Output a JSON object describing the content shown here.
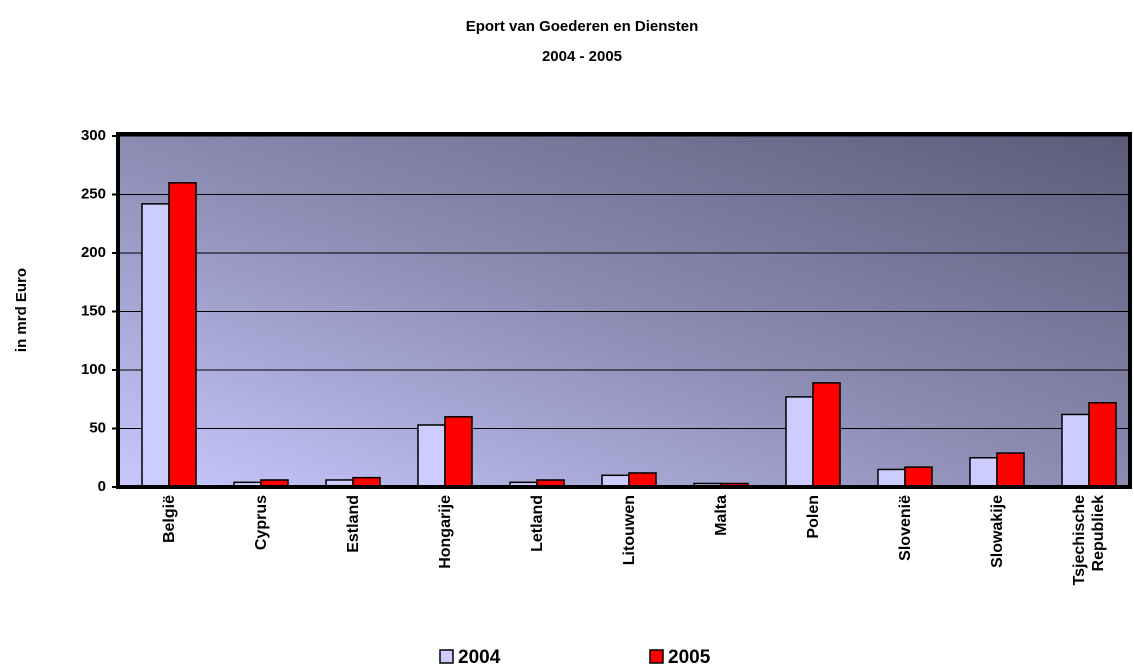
{
  "chart_data": {
    "type": "bar",
    "title": "Eport van Goederen en Diensten",
    "subtitle": "2004 - 2005",
    "y_label": "in mrd Euro",
    "categories": [
      "België",
      "Cyprus",
      "Estland",
      "Hongarije",
      "Letland",
      "Litouwen",
      "Malta",
      "Polen",
      "Slovenië",
      "Slowakije",
      "Tsjechische Republiek"
    ],
    "series": [
      {
        "name": "2004",
        "color": "#ccccff",
        "values": [
          242,
          4,
          6,
          53,
          4,
          10,
          3,
          77,
          15,
          25,
          62
        ]
      },
      {
        "name": "2005",
        "color": "#ff0000",
        "values": [
          260,
          6,
          8,
          60,
          6,
          12,
          3,
          89,
          17,
          29,
          72
        ]
      }
    ],
    "ylim": [
      0,
      300
    ],
    "yticks": [
      0,
      50,
      100,
      150,
      200,
      250,
      300
    ],
    "grid": true,
    "legend": "bottom"
  }
}
